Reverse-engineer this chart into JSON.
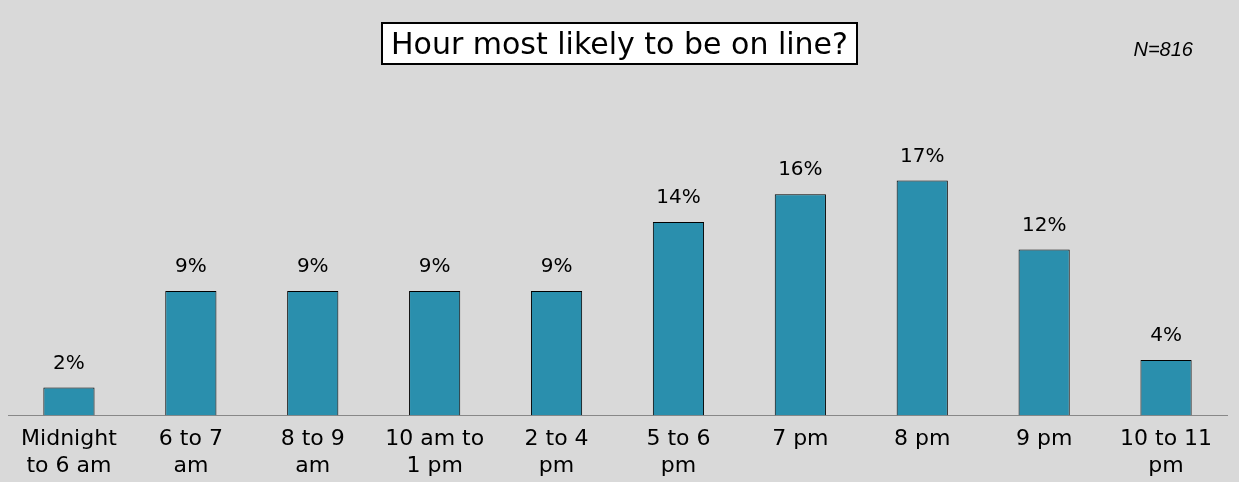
{
  "chart_data": {
    "type": "bar",
    "title": "Hour most likely to be on line?",
    "annotations": [
      "N=816"
    ],
    "categories": [
      "Midnight to 6 am",
      "6 to 7 am",
      "8 to 9 am",
      "10 am to 1 pm",
      "2 to 4 pm",
      "5 to 6 pm",
      "7 pm",
      "8 pm",
      "9 pm",
      "10 to 11 pm"
    ],
    "values": [
      2,
      9,
      9,
      9,
      9,
      14,
      16,
      17,
      12,
      4
    ],
    "color": "#2a8fad",
    "value_labels": [
      "2%",
      "9%",
      "9%",
      "9%",
      "9%",
      "14%",
      "16%",
      "17%",
      "12%",
      "4%"
    ],
    "tick_labels": "x"
  }
}
